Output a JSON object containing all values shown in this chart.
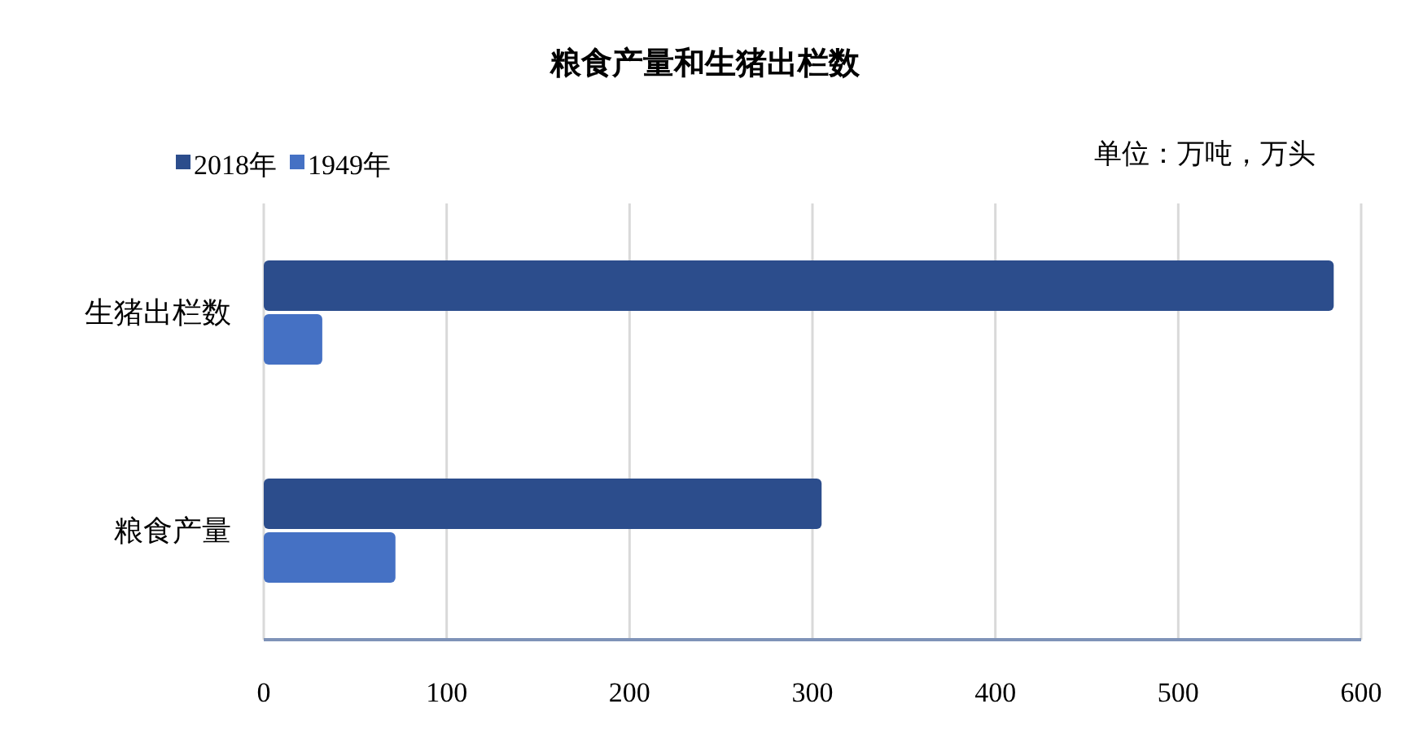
{
  "chart_data": {
    "type": "bar",
    "title": "粮食产量和生猪出栏数",
    "orientation": "horizontal",
    "categories": [
      "生猪出栏数",
      "粮食产量"
    ],
    "series": [
      {
        "name": "2018年",
        "color": "#2c4d8c",
        "values": [
          585,
          305
        ]
      },
      {
        "name": "1949年",
        "color": "#4571c4",
        "values": [
          32,
          72
        ]
      }
    ],
    "xlim": [
      0,
      600
    ],
    "xticks": [
      0,
      100,
      200,
      300,
      400,
      500,
      600
    ],
    "grid": "x",
    "legend": "top left",
    "annotations": [
      "单位：万吨，万头"
    ]
  }
}
